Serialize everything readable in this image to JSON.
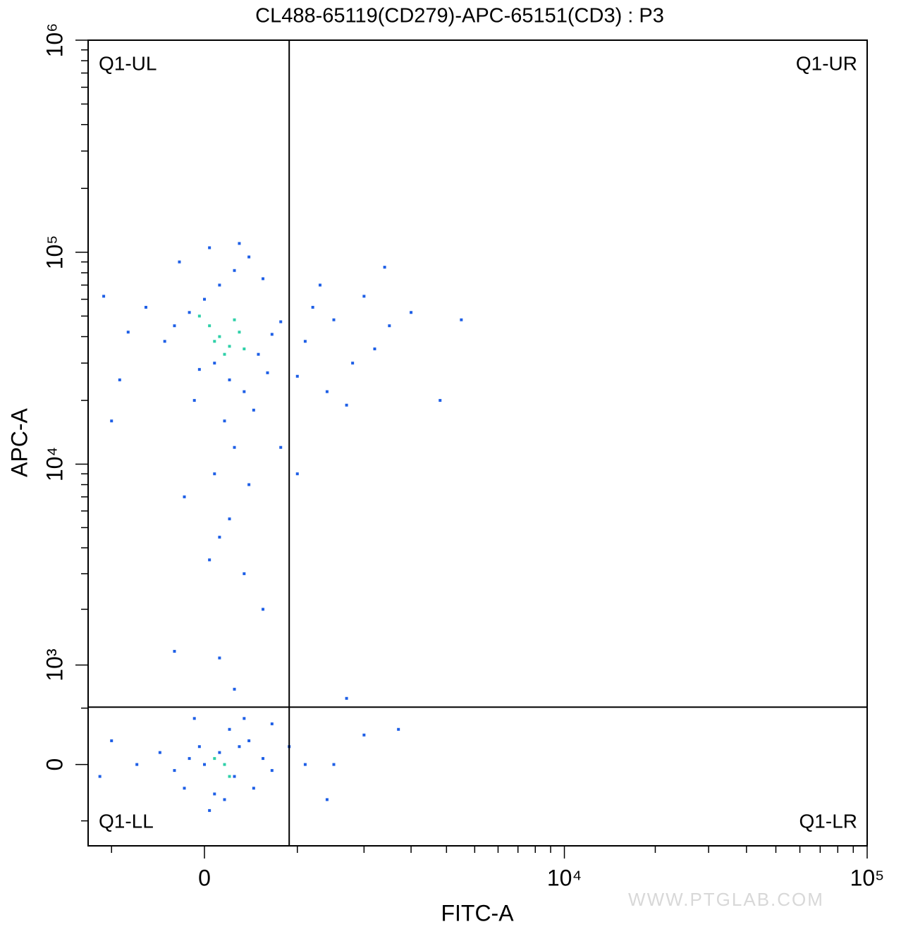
{
  "chart_data": {
    "type": "scatter",
    "title": "CL488-65119(CD279)-APC-65151(CD3) : P3",
    "x_label": "FITC-A",
    "y_label": "APC-A",
    "xscale": "biexponential",
    "yscale": "biexponential",
    "xlim": [
      -1310,
      100000
    ],
    "ylim": [
      -770,
      1000000
    ],
    "xticks": [
      0,
      {
        "value": 10000,
        "label": "10⁴"
      },
      {
        "value": 100000,
        "label": "10⁵"
      }
    ],
    "yticks": [
      0,
      {
        "value": 1000,
        "label": "10³"
      },
      {
        "value": 10000,
        "label": "10⁴"
      },
      {
        "value": 100000,
        "label": "10⁵"
      },
      {
        "value": 1000000,
        "label": "10⁶"
      }
    ],
    "xminorticks": [
      -1000,
      1000,
      2000,
      3000,
      4000,
      5000,
      6000,
      7000,
      8000,
      9000,
      20000,
      30000,
      40000,
      50000,
      60000,
      70000,
      80000,
      90000
    ],
    "yminorticks": [
      -500,
      500,
      2000,
      3000,
      4000,
      5000,
      6000,
      7000,
      8000,
      9000,
      20000,
      30000,
      40000,
      50000,
      60000,
      70000,
      80000,
      90000,
      200000,
      300000,
      400000,
      500000,
      600000,
      700000,
      800000,
      900000
    ],
    "quadrant_x": 900,
    "quadrant_y": 510,
    "quadrant_labels": [
      "Q1-UL",
      "Q1-UR",
      "Q1-LL",
      "Q1-LR"
    ],
    "watermark": "WWW.PTGLAB.COM",
    "series": [
      {
        "color": "#1e5fe6",
        "x": [
          -300,
          -150,
          0,
          150,
          300,
          450,
          600,
          100,
          -50,
          250,
          400,
          550,
          700,
          800,
          -400,
          -600,
          350,
          50,
          -250,
          500,
          200,
          -100,
          650,
          300,
          100,
          450,
          -200,
          250,
          150,
          50,
          400,
          -800,
          -1100,
          -900,
          -1000,
          1200,
          1500,
          2000,
          2500,
          1100,
          1800,
          2200,
          3000,
          1000,
          1400,
          1700,
          3800,
          4500,
          1300,
          2400,
          800,
          1000,
          600,
          150,
          -300,
          300,
          1700,
          0,
          150,
          300,
          -150,
          450,
          -300,
          100,
          250,
          500,
          -100,
          600,
          50,
          350,
          -450,
          700,
          200,
          -200,
          400,
          -700,
          -1000,
          -1150,
          900,
          1100,
          1400,
          2000,
          2700,
          1500,
          700,
          -50
        ],
        "y": [
          45000,
          52000,
          60000,
          70000,
          82000,
          95000,
          75000,
          30000,
          28000,
          25000,
          22000,
          33000,
          41000,
          47000,
          38000,
          55000,
          110000,
          105000,
          90000,
          18000,
          16000,
          20000,
          27000,
          12000,
          9000,
          8000,
          7000,
          5500,
          4500,
          3500,
          3000,
          42000,
          62000,
          25000,
          16000,
          55000,
          48000,
          62000,
          45000,
          38000,
          30000,
          35000,
          52000,
          26000,
          22000,
          19000,
          20000,
          48000,
          70000,
          85000,
          12000,
          9000,
          2000,
          1100,
          1200,
          700,
          600,
          0,
          100,
          -100,
          50,
          200,
          -50,
          -250,
          300,
          -200,
          400,
          50,
          -400,
          150,
          100,
          -50,
          -300,
          -200,
          400,
          0,
          200,
          -100,
          150,
          0,
          -300,
          250,
          300,
          0,
          350,
          150
        ]
      },
      {
        "color": "#2fd0a8",
        "x": [
          150,
          250,
          50,
          300,
          200,
          350,
          100,
          -50,
          400,
          200,
          100,
          250
        ],
        "y": [
          40000,
          36000,
          45000,
          48000,
          33000,
          42000,
          38000,
          50000,
          35000,
          0,
          50,
          -100
        ]
      }
    ]
  }
}
